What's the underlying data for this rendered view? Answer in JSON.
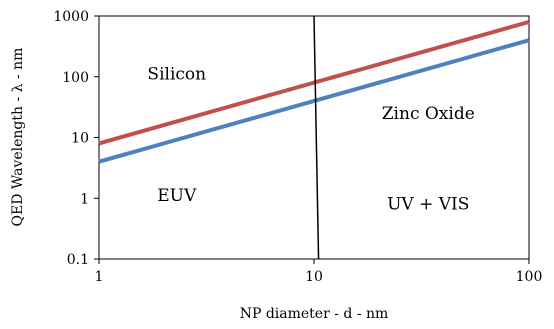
{
  "chart_data": {
    "type": "line",
    "title": "",
    "xlabel": "NP diameter - d - nm",
    "ylabel": "QED Wavelength   - λ -  nm",
    "xscale": "log",
    "yscale": "log",
    "xlim": [
      1,
      100
    ],
    "ylim": [
      0.1,
      1000
    ],
    "x_ticks": [
      "1",
      "10",
      "100"
    ],
    "y_ticks": [
      "0.1",
      "1",
      "10",
      "100",
      "1000"
    ],
    "grid": false,
    "legend": "none",
    "series": [
      {
        "color": "#c0504d",
        "x": [
          1,
          100
        ],
        "y": [
          8,
          800
        ]
      },
      {
        "color": "#4f81bd",
        "x": [
          1,
          100
        ],
        "y": [
          4,
          400
        ]
      }
    ],
    "divider": {
      "color": "#000000",
      "x_top": 10,
      "x_bottom": 10.5
    },
    "annotations": [
      {
        "text": "Silicon",
        "x": 2.3,
        "y": 90
      },
      {
        "text": "Zinc Oxide",
        "x": 34,
        "y": 20
      },
      {
        "text": "EUV",
        "x": 2.3,
        "y": 0.9
      },
      {
        "text": "UV + VIS",
        "x": 34,
        "y": 0.65
      }
    ]
  }
}
